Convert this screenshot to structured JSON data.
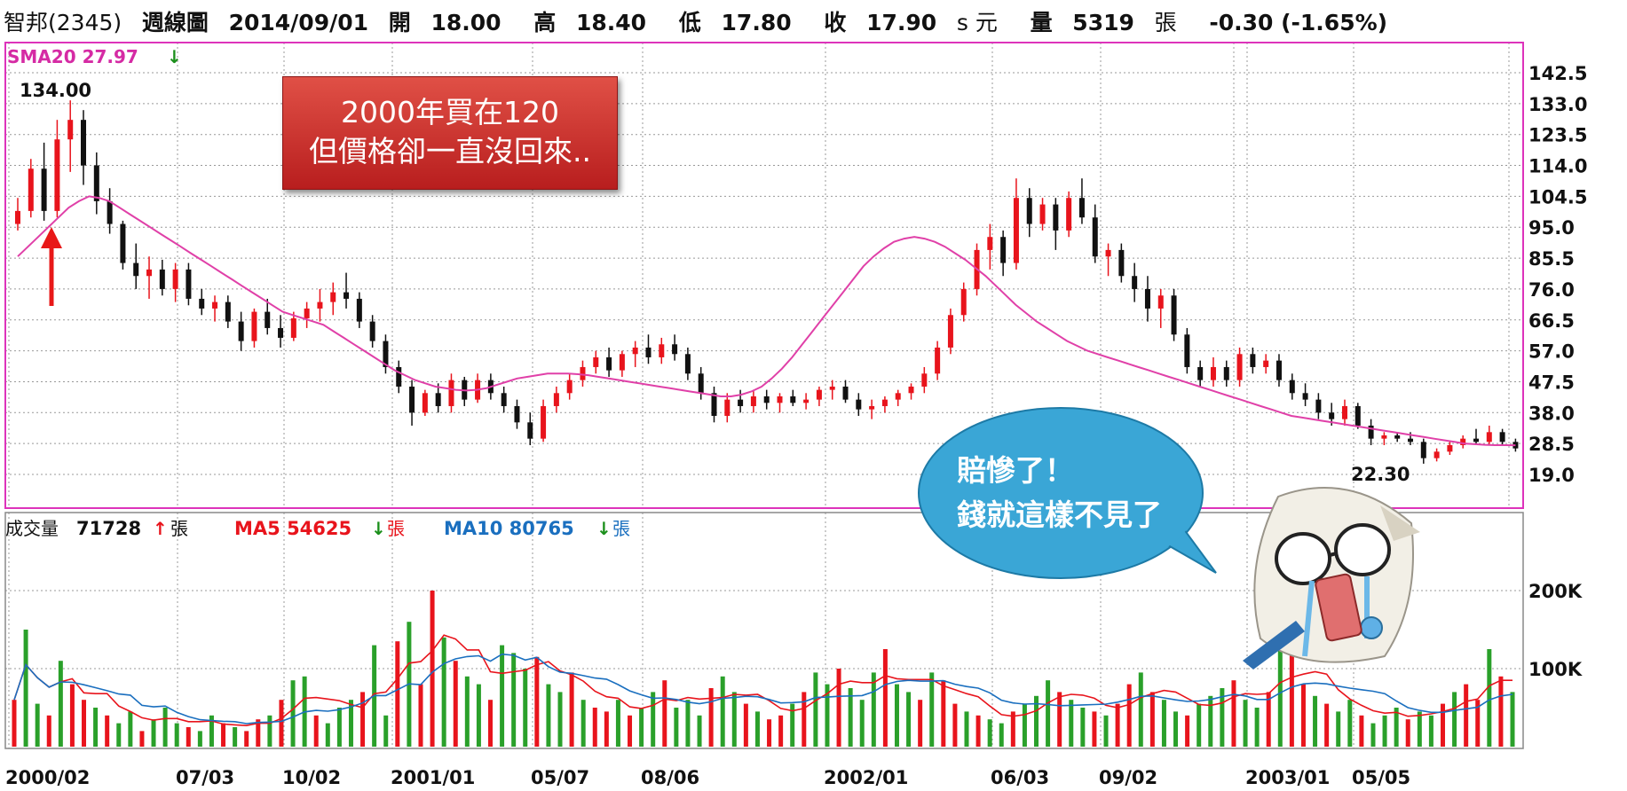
{
  "header": {
    "stock": "智邦(2345)",
    "period": "週線圖",
    "date": "2014/09/01",
    "open_label": "開",
    "open": "18.00",
    "high_label": "高",
    "high": "18.40",
    "low_label": "低",
    "low": "17.80",
    "close_label": "收",
    "close": "17.90",
    "currency": "s 元",
    "volume_label": "量",
    "volume": "5319",
    "volume_unit": "張",
    "change": "-0.30 (-1.65%)"
  },
  "price_panel": {
    "sma_label": "SMA20 27.97",
    "sma_arrow": "down",
    "high_mark": "134.00",
    "low_mark": "22.30"
  },
  "volume_panel": {
    "vol_label": "成交量",
    "vol_value": "71728",
    "vol_arrow": "up",
    "vol_unit": "張",
    "ma5_label": "MA5 54625",
    "ma5_arrow": "down",
    "ma5_unit": "張",
    "ma10_label": "MA10 80765",
    "ma10_arrow": "down",
    "ma10_unit": "張"
  },
  "annotations": {
    "callout_line1": "2000年買在120",
    "callout_line2": "但價格卻一直沒回來..",
    "bubble_line1": "賠慘了！",
    "bubble_line2": "錢就這樣不見了"
  },
  "colors": {
    "up": "#e8141c",
    "down": "#111111",
    "sma": "#e040a8",
    "vol_up": "#e8141c",
    "vol_down": "#2aa02a",
    "ma5": "#e8141c",
    "ma10": "#1a6fbf",
    "frame": "#dd33bb",
    "grid": "#999999"
  },
  "chart_data": [
    {
      "type": "candlestick",
      "title": "",
      "y_ticks": [
        "142.5",
        "133.0",
        "123.5",
        "114.0",
        "104.5",
        "95.0",
        "85.5",
        "76.0",
        "66.5",
        "57.0",
        "47.5",
        "38.0",
        "28.5",
        "19.0"
      ],
      "ylim": [
        10,
        148
      ],
      "x_ticks": [
        "2000/02",
        "07/03",
        "10/02",
        "2001/01",
        "05/07",
        "08/06",
        "2002/01",
        "06/03",
        "09/02",
        "2003/01",
        "05/05"
      ],
      "x_tick_index": [
        0,
        30,
        50,
        70,
        98,
        118,
        152,
        182,
        202,
        230,
        253
      ],
      "series": [
        {
          "name": "SMA20",
          "values": [
            86,
            89,
            92,
            95,
            98,
            101,
            103,
            104.5,
            104,
            103,
            101,
            99,
            97,
            95,
            93,
            91,
            89,
            87,
            85,
            83,
            81,
            79,
            77,
            75,
            73,
            71,
            69,
            68,
            67,
            66,
            65,
            63,
            61,
            59,
            57,
            55,
            53,
            51,
            49.5,
            48,
            47,
            46,
            45.5,
            45,
            44.8,
            45,
            45.5,
            46.5,
            47.5,
            48.5,
            49,
            49.5,
            50,
            50,
            50,
            49.8,
            49.5,
            49,
            48.5,
            48,
            47.5,
            47,
            46.5,
            46,
            45.5,
            45,
            44.5,
            44,
            43.5,
            43,
            43,
            43.5,
            44.5,
            46,
            48.5,
            51.5,
            55,
            59,
            63,
            67,
            71,
            75,
            79,
            83,
            86,
            88.5,
            90.5,
            91.5,
            92,
            91.5,
            90.5,
            89,
            87,
            85,
            82.5,
            80,
            77,
            74,
            71,
            68.5,
            66,
            64,
            62,
            60,
            58.5,
            57,
            56,
            55,
            54,
            53,
            52,
            51,
            50,
            49,
            48,
            47,
            46,
            45,
            44,
            43,
            42,
            41,
            40,
            39,
            38,
            37,
            36.5,
            36,
            35.5,
            35,
            34.5,
            34,
            33.5,
            33,
            32.5,
            32,
            31.5,
            31,
            30.5,
            30,
            29.5,
            29,
            28.5,
            28.3,
            28.1,
            28,
            28,
            27.97
          ]
        }
      ],
      "candles": [
        {
          "o": 96,
          "h": 104,
          "l": 94,
          "c": 100
        },
        {
          "o": 100,
          "h": 116,
          "l": 98,
          "c": 113
        },
        {
          "o": 113,
          "h": 121,
          "l": 97,
          "c": 100
        },
        {
          "o": 100,
          "h": 128,
          "l": 98,
          "c": 122
        },
        {
          "o": 122,
          "h": 134,
          "l": 112,
          "c": 128
        },
        {
          "o": 128,
          "h": 131,
          "l": 108,
          "c": 114
        },
        {
          "o": 114,
          "h": 118,
          "l": 99,
          "c": 103
        },
        {
          "o": 103,
          "h": 107,
          "l": 93,
          "c": 96
        },
        {
          "o": 96,
          "h": 97,
          "l": 82,
          "c": 84
        },
        {
          "o": 84,
          "h": 90,
          "l": 76,
          "c": 80
        },
        {
          "o": 80,
          "h": 86,
          "l": 73,
          "c": 82
        },
        {
          "o": 82,
          "h": 85,
          "l": 74,
          "c": 76
        },
        {
          "o": 76,
          "h": 84,
          "l": 72,
          "c": 82
        },
        {
          "o": 82,
          "h": 84,
          "l": 71,
          "c": 73
        },
        {
          "o": 73,
          "h": 76,
          "l": 68,
          "c": 70
        },
        {
          "o": 70,
          "h": 74,
          "l": 66,
          "c": 72
        },
        {
          "o": 72,
          "h": 74,
          "l": 64,
          "c": 66
        },
        {
          "o": 66,
          "h": 69,
          "l": 57,
          "c": 60
        },
        {
          "o": 60,
          "h": 70,
          "l": 58,
          "c": 69
        },
        {
          "o": 69,
          "h": 73,
          "l": 62,
          "c": 64
        },
        {
          "o": 64,
          "h": 68,
          "l": 58,
          "c": 61
        },
        {
          "o": 61,
          "h": 69,
          "l": 60,
          "c": 67
        },
        {
          "o": 67,
          "h": 72,
          "l": 64,
          "c": 70
        },
        {
          "o": 70,
          "h": 76,
          "l": 66,
          "c": 72
        },
        {
          "o": 72,
          "h": 78,
          "l": 68,
          "c": 75
        },
        {
          "o": 75,
          "h": 81,
          "l": 70,
          "c": 73
        },
        {
          "o": 73,
          "h": 75,
          "l": 64,
          "c": 66
        },
        {
          "o": 66,
          "h": 68,
          "l": 58,
          "c": 60
        },
        {
          "o": 60,
          "h": 62,
          "l": 50,
          "c": 52
        },
        {
          "o": 52,
          "h": 54,
          "l": 44,
          "c": 46
        },
        {
          "o": 46,
          "h": 48,
          "l": 34,
          "c": 38
        },
        {
          "o": 38,
          "h": 45,
          "l": 37,
          "c": 44
        },
        {
          "o": 44,
          "h": 47,
          "l": 38,
          "c": 40
        },
        {
          "o": 40,
          "h": 50,
          "l": 38,
          "c": 48
        },
        {
          "o": 48,
          "h": 49,
          "l": 40,
          "c": 42
        },
        {
          "o": 42,
          "h": 50,
          "l": 41,
          "c": 48
        },
        {
          "o": 48,
          "h": 50,
          "l": 42,
          "c": 44
        },
        {
          "o": 44,
          "h": 46,
          "l": 38,
          "c": 40
        },
        {
          "o": 40,
          "h": 42,
          "l": 33,
          "c": 35
        },
        {
          "o": 35,
          "h": 38,
          "l": 28,
          "c": 30
        },
        {
          "o": 30,
          "h": 42,
          "l": 29,
          "c": 40
        },
        {
          "o": 40,
          "h": 46,
          "l": 38,
          "c": 44
        },
        {
          "o": 44,
          "h": 50,
          "l": 42,
          "c": 48
        },
        {
          "o": 48,
          "h": 54,
          "l": 46,
          "c": 52
        },
        {
          "o": 52,
          "h": 57,
          "l": 50,
          "c": 55
        },
        {
          "o": 55,
          "h": 58,
          "l": 49,
          "c": 51
        },
        {
          "o": 51,
          "h": 57,
          "l": 49,
          "c": 56
        },
        {
          "o": 56,
          "h": 60,
          "l": 52,
          "c": 58
        },
        {
          "o": 58,
          "h": 62,
          "l": 53,
          "c": 55
        },
        {
          "o": 55,
          "h": 61,
          "l": 53,
          "c": 59
        },
        {
          "o": 59,
          "h": 62,
          "l": 54,
          "c": 56
        },
        {
          "o": 56,
          "h": 58,
          "l": 48,
          "c": 50
        },
        {
          "o": 50,
          "h": 52,
          "l": 42,
          "c": 44
        },
        {
          "o": 44,
          "h": 46,
          "l": 35,
          "c": 37
        },
        {
          "o": 37,
          "h": 44,
          "l": 35,
          "c": 42
        },
        {
          "o": 42,
          "h": 45,
          "l": 38,
          "c": 40
        },
        {
          "o": 40,
          "h": 45,
          "l": 38,
          "c": 43
        },
        {
          "o": 43,
          "h": 45,
          "l": 39,
          "c": 41
        },
        {
          "o": 41,
          "h": 44,
          "l": 38,
          "c": 43
        },
        {
          "o": 43,
          "h": 45,
          "l": 40,
          "c": 41
        },
        {
          "o": 41,
          "h": 44,
          "l": 39,
          "c": 42
        },
        {
          "o": 42,
          "h": 46,
          "l": 40,
          "c": 45
        },
        {
          "o": 45,
          "h": 48,
          "l": 42,
          "c": 46
        },
        {
          "o": 46,
          "h": 48,
          "l": 41,
          "c": 42
        },
        {
          "o": 42,
          "h": 44,
          "l": 37,
          "c": 39
        },
        {
          "o": 39,
          "h": 42,
          "l": 36,
          "c": 40
        },
        {
          "o": 40,
          "h": 43,
          "l": 38,
          "c": 42
        },
        {
          "o": 42,
          "h": 45,
          "l": 40,
          "c": 44
        },
        {
          "o": 44,
          "h": 47,
          "l": 42,
          "c": 46
        },
        {
          "o": 46,
          "h": 52,
          "l": 44,
          "c": 50
        },
        {
          "o": 50,
          "h": 60,
          "l": 48,
          "c": 58
        },
        {
          "o": 58,
          "h": 70,
          "l": 56,
          "c": 68
        },
        {
          "o": 68,
          "h": 78,
          "l": 66,
          "c": 76
        },
        {
          "o": 76,
          "h": 90,
          "l": 74,
          "c": 88
        },
        {
          "o": 88,
          "h": 96,
          "l": 82,
          "c": 92
        },
        {
          "o": 92,
          "h": 94,
          "l": 80,
          "c": 84
        },
        {
          "o": 84,
          "h": 110,
          "l": 82,
          "c": 104
        },
        {
          "o": 104,
          "h": 107,
          "l": 92,
          "c": 96
        },
        {
          "o": 96,
          "h": 104,
          "l": 94,
          "c": 102
        },
        {
          "o": 102,
          "h": 104,
          "l": 88,
          "c": 94
        },
        {
          "o": 94,
          "h": 106,
          "l": 92,
          "c": 104
        },
        {
          "o": 104,
          "h": 110,
          "l": 96,
          "c": 98
        },
        {
          "o": 98,
          "h": 102,
          "l": 84,
          "c": 86
        },
        {
          "o": 86,
          "h": 90,
          "l": 80,
          "c": 88
        },
        {
          "o": 88,
          "h": 90,
          "l": 78,
          "c": 80
        },
        {
          "o": 80,
          "h": 84,
          "l": 72,
          "c": 76
        },
        {
          "o": 76,
          "h": 80,
          "l": 66,
          "c": 70
        },
        {
          "o": 70,
          "h": 76,
          "l": 64,
          "c": 74
        },
        {
          "o": 74,
          "h": 76,
          "l": 60,
          "c": 62
        },
        {
          "o": 62,
          "h": 64,
          "l": 50,
          "c": 52
        },
        {
          "o": 52,
          "h": 54,
          "l": 46,
          "c": 48
        },
        {
          "o": 48,
          "h": 55,
          "l": 46,
          "c": 52
        },
        {
          "o": 52,
          "h": 54,
          "l": 46,
          "c": 48
        },
        {
          "o": 48,
          "h": 58,
          "l": 46,
          "c": 56
        },
        {
          "o": 56,
          "h": 58,
          "l": 50,
          "c": 52
        },
        {
          "o": 52,
          "h": 56,
          "l": 50,
          "c": 54
        },
        {
          "o": 54,
          "h": 56,
          "l": 46,
          "c": 48
        },
        {
          "o": 48,
          "h": 50,
          "l": 42,
          "c": 44
        },
        {
          "o": 44,
          "h": 47,
          "l": 40,
          "c": 42
        },
        {
          "o": 42,
          "h": 44,
          "l": 36,
          "c": 38
        },
        {
          "o": 38,
          "h": 41,
          "l": 34,
          "c": 36
        },
        {
          "o": 36,
          "h": 42,
          "l": 34,
          "c": 40
        },
        {
          "o": 40,
          "h": 41,
          "l": 33,
          "c": 34
        },
        {
          "o": 34,
          "h": 36,
          "l": 28,
          "c": 30
        },
        {
          "o": 30,
          "h": 32,
          "l": 28,
          "c": 31
        },
        {
          "o": 31,
          "h": 32,
          "l": 29,
          "c": 30
        },
        {
          "o": 30,
          "h": 32,
          "l": 28,
          "c": 29
        },
        {
          "o": 29,
          "h": 30,
          "l": 22.3,
          "c": 24
        },
        {
          "o": 24,
          "h": 27,
          "l": 23,
          "c": 26
        },
        {
          "o": 26,
          "h": 29,
          "l": 25,
          "c": 28
        },
        {
          "o": 28,
          "h": 31,
          "l": 27,
          "c": 30
        },
        {
          "o": 30,
          "h": 33,
          "l": 28,
          "c": 29
        },
        {
          "o": 29,
          "h": 34,
          "l": 28,
          "c": 32
        },
        {
          "o": 32,
          "h": 33,
          "l": 28,
          "c": 29
        },
        {
          "o": 29,
          "h": 30,
          "l": 26,
          "c": 27
        }
      ]
    },
    {
      "type": "bar",
      "title": "",
      "y_ticks": [
        "200K",
        "100K"
      ],
      "ylim": [
        0,
        260000
      ],
      "series": [
        {
          "name": "成交量",
          "values": [
            60000,
            150000,
            55000,
            40000,
            110000,
            80000,
            60000,
            50000,
            40000,
            30000,
            45000,
            20000,
            35000,
            50000,
            30000,
            25000,
            20000,
            40000,
            30000,
            25000,
            20000,
            35000,
            40000,
            60000,
            85000,
            90000,
            40000,
            30000,
            50000,
            60000,
            70000,
            130000,
            40000,
            135000,
            160000,
            80000,
            200000,
            140000,
            110000,
            90000,
            80000,
            60000,
            130000,
            120000,
            100000,
            115000,
            80000,
            70000,
            95000,
            60000,
            50000,
            45000,
            60000,
            40000,
            50000,
            70000,
            85000,
            50000,
            60000,
            40000,
            75000,
            90000,
            70000,
            55000,
            45000,
            35000,
            40000,
            55000,
            70000,
            95000,
            80000,
            100000,
            75000,
            60000,
            95000,
            125000,
            80000,
            70000,
            60000,
            95000,
            85000,
            55000,
            45000,
            40000,
            35000,
            30000,
            45000,
            55000,
            65000,
            85000,
            70000,
            60000,
            50000,
            45000,
            40000,
            55000,
            80000,
            95000,
            70000,
            60000,
            45000,
            40000,
            55000,
            65000,
            75000,
            85000,
            60000,
            50000,
            70000,
            145000,
            120000,
            80000,
            65000,
            55000,
            45000,
            60000,
            40000,
            30000,
            40000,
            50000,
            35000,
            45000,
            40000,
            55000,
            70000,
            80000,
            60000,
            125000,
            90000,
            70000
          ]
        },
        {
          "name": "MA5",
          "values": []
        },
        {
          "name": "MA10",
          "values": []
        }
      ]
    }
  ]
}
